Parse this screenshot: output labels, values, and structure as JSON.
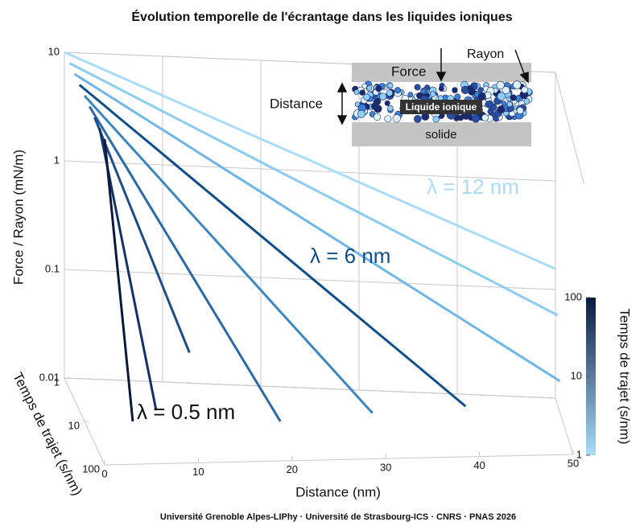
{
  "chart_data": {
    "type": "surface3d",
    "title": "Évolution temporelle de l'écrantage dans les liquides ioniques",
    "xlabel": "Distance  (nm)",
    "ylabel": "Force / Rayon  (mN/m)",
    "zlabel": "Temps de trajet  (s/nm)",
    "xlim": [
      0,
      50
    ],
    "xticks": [
      0,
      10,
      20,
      30,
      40,
      50
    ],
    "ylim": [
      0.01,
      10
    ],
    "yticks": [
      0.01,
      0.1,
      1,
      10
    ],
    "log_y": true,
    "zlim": [
      1,
      100
    ],
    "zticks": [
      1,
      10,
      100
    ],
    "log_z": true,
    "grid": true,
    "x": [
      0,
      1,
      2,
      3,
      4,
      6,
      8,
      10,
      15,
      20,
      25,
      30,
      35,
      40,
      45,
      50
    ],
    "curves": [
      {
        "time": 1,
        "color": "#a8dcfa",
        "values": [
          10,
          9.2,
          8.46,
          7.79,
          7.17,
          6.07,
          5.13,
          4.35,
          2.87,
          1.89,
          1.25,
          0.821,
          0.541,
          0.357,
          0.235,
          0.155
        ]
      },
      {
        "time": 1.78,
        "color": "#8ccbf2",
        "values": [
          10,
          9.05,
          8.19,
          7.41,
          6.7,
          5.49,
          4.49,
          3.68,
          2.23,
          1.35,
          0.821,
          0.498,
          0.302,
          0.183,
          0.111,
          0.0674
        ]
      },
      {
        "time": 3.16,
        "color": "#6eb7e8",
        "values": [
          10,
          8.82,
          7.79,
          6.87,
          6.07,
          4.72,
          3.68,
          2.87,
          1.53,
          0.821,
          0.439,
          0.235,
          0.126,
          0.0674,
          0.0361,
          0.0193
        ]
      },
      {
        "time": 5.62,
        "color": "#0f4f8c",
        "values": [
          10,
          8.46,
          7.17,
          6.07,
          5.13,
          3.68,
          2.64,
          1.89,
          0.821,
          0.357,
          0.155,
          0.0674,
          0.0293,
          0.0127,
          null,
          null
        ]
      },
      {
        "time": 10,
        "color": "#3a87c4",
        "values": [
          10,
          8.01,
          6.41,
          5.13,
          4.11,
          2.64,
          1.69,
          1.08,
          0.357,
          0.117,
          0.0386,
          0.0127,
          null,
          null,
          null,
          null
        ]
      },
      {
        "time": 17.8,
        "color": "#2a6aa8",
        "values": [
          10,
          7.17,
          5.13,
          3.68,
          2.64,
          1.35,
          0.695,
          0.357,
          0.0674,
          0.0127,
          null,
          null,
          null,
          null,
          null,
          null
        ]
      },
      {
        "time": 31.6,
        "color": "#1c4d8a",
        "values": [
          10,
          6.07,
          3.68,
          2.23,
          1.35,
          0.498,
          0.183,
          0.0674,
          null,
          null,
          null,
          null,
          null,
          null,
          null,
          null
        ]
      },
      {
        "time": 56.2,
        "color": "#13326a",
        "values": [
          10,
          3.68,
          1.35,
          0.498,
          0.183,
          0.0248,
          null,
          null,
          null,
          null,
          null,
          null,
          null,
          null,
          null,
          null
        ]
      },
      {
        "time": 100,
        "color": "#0a1a3e",
        "values": [
          10,
          1.35,
          0.183,
          0.0248,
          null,
          null,
          null,
          null,
          null,
          null,
          null,
          null,
          null,
          null,
          null,
          null
        ]
      }
    ],
    "colormap": [
      "#a8dcfa",
      "#0a1a3e"
    ],
    "colorbar": {
      "label": "Temps de trajet  (s/nm)",
      "lim": [
        1,
        100
      ],
      "ticks": [
        1,
        10,
        100
      ]
    },
    "annotations": [
      {
        "text": "λ = 12 nm",
        "color": "#a8dcfa"
      },
      {
        "text": "λ = 6 nm",
        "color": "#0f4f8c"
      },
      {
        "text": "λ = 0.5 nm",
        "color": "#111111"
      }
    ],
    "inset": {
      "force": "Force",
      "radius": "Rayon",
      "distance": "Distance",
      "liquid": "Liquide ionique",
      "solid": "solide"
    },
    "footer": "Université Grenoble Alpes-LIPhy · Université de Strasbourg-ICS · CNRS · PNAS 2026"
  }
}
